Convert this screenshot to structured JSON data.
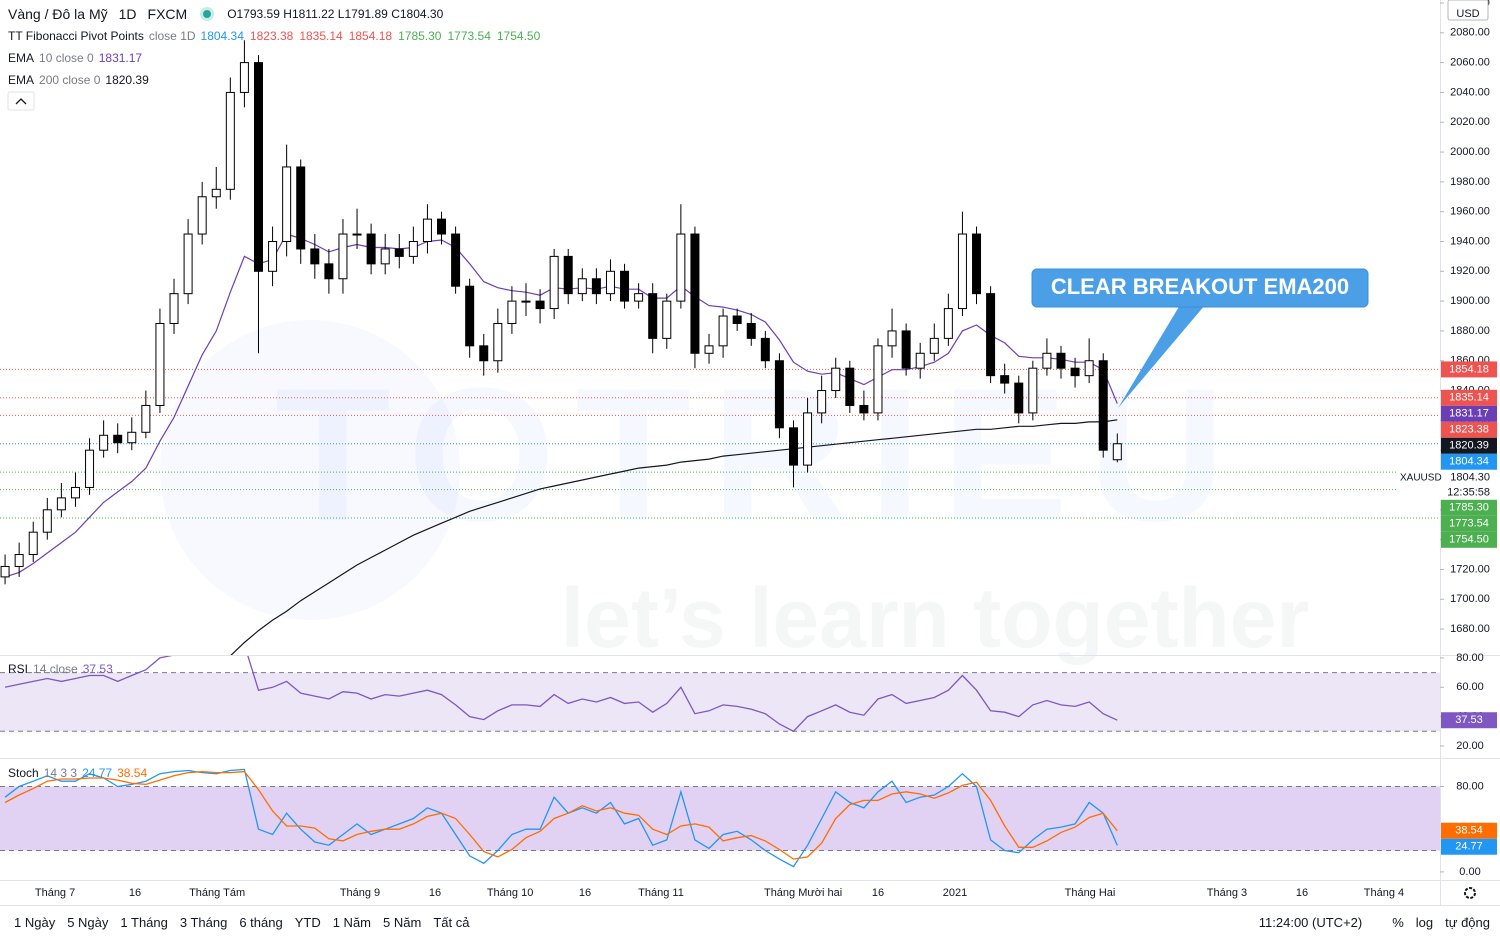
{
  "header": {
    "symbol": "Vàng / Đô la Mỹ",
    "interval": "1D",
    "exchange": "FXCM",
    "ohlc_keys": [
      "O",
      "H",
      "L",
      "C"
    ]
  },
  "toolbar": {
    "ranges": [
      "1 Ngày",
      "5 Ngày",
      "1 Tháng",
      "3 Tháng",
      "6 tháng",
      "YTD",
      "1 Năm",
      "5 Năm",
      "Tất cả"
    ],
    "time": "11:24:00 (UTC+2)",
    "options": [
      "%",
      "log",
      "tự động"
    ]
  },
  "chart_data": [
    {
      "type": "candlestick",
      "currency": "USD",
      "symbol_code": "XAUUSD",
      "countdown": "12:35:58",
      "last_label": "1804.30",
      "up_color": "#ffffff",
      "down_color": "#000000",
      "open": [
        1715,
        1722,
        1730,
        1745,
        1760,
        1768,
        1775,
        1800,
        1810,
        1805,
        1812,
        1830,
        1885,
        1905,
        1945,
        1970,
        1975,
        2040,
        2060,
        1920,
        1940,
        1990,
        1935,
        1925,
        1915,
        1945,
        1945,
        1925,
        1935,
        1930,
        1940,
        1955,
        1945,
        1910,
        1870,
        1860,
        1885,
        1900,
        1900,
        1895,
        1930,
        1905,
        1915,
        1905,
        1920,
        1900,
        1905,
        1875,
        1900,
        1945,
        1865,
        1870,
        1890,
        1885,
        1875,
        1860,
        1815,
        1790,
        1825,
        1840,
        1855,
        1830,
        1825,
        1870,
        1880,
        1855,
        1865,
        1875,
        1895,
        1945,
        1905,
        1850,
        1845,
        1825,
        1855,
        1865,
        1855,
        1850,
        1860,
        1793.59
      ],
      "high": [
        1730,
        1738,
        1752,
        1768,
        1778,
        1785,
        1808,
        1820,
        1818,
        1822,
        1840,
        1895,
        1915,
        1955,
        1980,
        1990,
        2050,
        2075,
        2065,
        1950,
        2005,
        1995,
        1945,
        1935,
        1955,
        1962,
        1952,
        1945,
        1945,
        1950,
        1965,
        1960,
        1950,
        1915,
        1878,
        1895,
        1910,
        1912,
        1908,
        1935,
        1935,
        1922,
        1922,
        1928,
        1925,
        1912,
        1912,
        1905,
        1965,
        1950,
        1878,
        1895,
        1895,
        1892,
        1880,
        1865,
        1820,
        1835,
        1850,
        1862,
        1860,
        1840,
        1875,
        1895,
        1885,
        1872,
        1885,
        1905,
        1960,
        1950,
        1910,
        1858,
        1850,
        1860,
        1875,
        1870,
        1862,
        1875,
        1865,
        1811.22
      ],
      "low": [
        1710,
        1715,
        1725,
        1740,
        1755,
        1762,
        1770,
        1795,
        1798,
        1800,
        1808,
        1825,
        1878,
        1898,
        1938,
        1962,
        1968,
        2030,
        1865,
        1910,
        1930,
        1925,
        1915,
        1905,
        1905,
        1935,
        1918,
        1918,
        1922,
        1925,
        1932,
        1938,
        1905,
        1862,
        1850,
        1852,
        1878,
        1890,
        1885,
        1888,
        1898,
        1900,
        1898,
        1900,
        1895,
        1895,
        1865,
        1868,
        1895,
        1855,
        1858,
        1862,
        1880,
        1870,
        1855,
        1808,
        1775,
        1785,
        1818,
        1835,
        1825,
        1820,
        1820,
        1862,
        1850,
        1848,
        1860,
        1870,
        1890,
        1898,
        1845,
        1838,
        1818,
        1820,
        1850,
        1848,
        1842,
        1845,
        1795,
        1791.89
      ],
      "close": [
        1722,
        1730,
        1745,
        1760,
        1768,
        1775,
        1800,
        1810,
        1805,
        1812,
        1830,
        1885,
        1905,
        1945,
        1970,
        1975,
        2040,
        2060,
        1920,
        1940,
        1990,
        1935,
        1925,
        1915,
        1945,
        1945,
        1925,
        1935,
        1930,
        1940,
        1955,
        1945,
        1910,
        1870,
        1860,
        1885,
        1900,
        1900,
        1895,
        1930,
        1905,
        1915,
        1905,
        1920,
        1900,
        1905,
        1875,
        1900,
        1945,
        1865,
        1870,
        1890,
        1885,
        1875,
        1860,
        1815,
        1790,
        1825,
        1840,
        1855,
        1830,
        1825,
        1870,
        1880,
        1855,
        1865,
        1875,
        1895,
        1945,
        1905,
        1850,
        1845,
        1825,
        1855,
        1865,
        1855,
        1850,
        1860,
        1800,
        1804.3
      ],
      "series": [
        {
          "name": "EMA",
          "params": "10 close 0",
          "color": "#6a3fb5",
          "values": [
            1715,
            1718,
            1724,
            1731,
            1738,
            1745,
            1755,
            1765,
            1772,
            1779,
            1788,
            1806,
            1822,
            1843,
            1864,
            1880,
            1906,
            1930,
            1925,
            1928,
            1945,
            1942,
            1938,
            1933,
            1936,
            1938,
            1936,
            1936,
            1935,
            1936,
            1940,
            1941,
            1936,
            1925,
            1913,
            1909,
            1907,
            1906,
            1904,
            1909,
            1908,
            1909,
            1908,
            1910,
            1908,
            1908,
            1902,
            1902,
            1910,
            1903,
            1897,
            1896,
            1894,
            1891,
            1886,
            1874,
            1859,
            1853,
            1851,
            1852,
            1848,
            1844,
            1849,
            1854,
            1854,
            1856,
            1859,
            1865,
            1880,
            1884,
            1877,
            1872,
            1863,
            1862,
            1862,
            1861,
            1859,
            1859,
            1854,
            1831.17
          ]
        },
        {
          "name": "EMA",
          "params": "200 close 0",
          "color": "#131722",
          "values": [
            null,
            null,
            null,
            null,
            null,
            null,
            null,
            null,
            null,
            null,
            null,
            null,
            null,
            null,
            null,
            null,
            1662,
            1671,
            1679,
            1686,
            1692,
            1699,
            1705,
            1711,
            1717,
            1723,
            1728,
            1733,
            1738,
            1743,
            1747,
            1751,
            1755,
            1759,
            1762,
            1765,
            1768,
            1771,
            1774,
            1776,
            1778,
            1780,
            1782,
            1784,
            1786,
            1788,
            1789,
            1790,
            1792,
            1793,
            1794,
            1796,
            1797,
            1798,
            1799,
            1800,
            1801,
            1802,
            1803,
            1804,
            1805,
            1806,
            1807,
            1808,
            1809,
            1810,
            1811,
            1812,
            1813,
            1814,
            1814,
            1815,
            1816,
            1816,
            1817,
            1818,
            1818,
            1819,
            1819,
            1820.39
          ]
        }
      ],
      "pivots": {
        "name": "TT Fibonacci Pivot Points",
        "params": "close 1D",
        "levels": [
          {
            "value": 1804.34,
            "label": "1804.34",
            "color": "#2196f3"
          },
          {
            "value": 1823.38,
            "label": "1823.38",
            "color": "#ef5350"
          },
          {
            "value": 1835.14,
            "label": "1835.14",
            "color": "#ef5350"
          },
          {
            "value": 1854.18,
            "label": "1854.18",
            "color": "#ef5350"
          },
          {
            "value": 1785.3,
            "label": "1785.30",
            "color": "#4caf50"
          },
          {
            "value": 1773.54,
            "label": "1773.54",
            "color": "#4caf50"
          },
          {
            "value": 1754.5,
            "label": "1754.50",
            "color": "#4caf50"
          }
        ]
      },
      "annotation": "CLEAR BREAKOUT EMA200",
      "watermark": {
        "brand": "TOTRIEU",
        "slogan": "let’s learn together"
      },
      "xlim": [
        -0.36,
        101.92
      ],
      "xticks": [
        {
          "value": 3.55,
          "label": "Tháng 7"
        },
        {
          "value": 9.23,
          "label": "16"
        },
        {
          "value": 15.06,
          "label": "Tháng Tám"
        },
        {
          "value": 25.21,
          "label": "Tháng 9"
        },
        {
          "value": 30.54,
          "label": "16"
        },
        {
          "value": 35.87,
          "label": "Tháng 10"
        },
        {
          "value": 41.19,
          "label": "16"
        },
        {
          "value": 46.59,
          "label": "Tháng 11"
        },
        {
          "value": 56.68,
          "label": "Tháng Mười hai"
        },
        {
          "value": 62.0,
          "label": "16"
        },
        {
          "value": 67.47,
          "label": "2021"
        },
        {
          "value": 77.06,
          "label": "Tháng Hai"
        },
        {
          "value": 86.79,
          "label": "Tháng 3"
        },
        {
          "value": 92.12,
          "label": "16"
        },
        {
          "value": 97.94,
          "label": "Tháng 4"
        }
      ],
      "ylim": [
        1662.6,
        2102
      ],
      "yticks": [
        {
          "value": 1680,
          "label": "1680.00"
        },
        {
          "value": 1700,
          "label": "1700.00"
        },
        {
          "value": 1720,
          "label": "1720.00"
        },
        {
          "value": 1740,
          "label": "1740.00"
        },
        {
          "value": 1760,
          "label": "1760.00"
        },
        {
          "value": 1780,
          "label": "1780.00"
        },
        {
          "value": 1800,
          "label": "1800.00"
        },
        {
          "value": 1820,
          "label": "1820.00"
        },
        {
          "value": 1840,
          "label": "1840.00"
        },
        {
          "value": 1860,
          "label": "1860.00"
        },
        {
          "value": 1880,
          "label": "1880.00"
        },
        {
          "value": 1900,
          "label": "1900.00"
        },
        {
          "value": 1920,
          "label": "1920.00"
        },
        {
          "value": 1940,
          "label": "1940.00"
        },
        {
          "value": 1960,
          "label": "1960.00"
        },
        {
          "value": 1980,
          "label": "1980.00"
        },
        {
          "value": 2000,
          "label": "2000.00"
        },
        {
          "value": 2020,
          "label": "2020.00"
        },
        {
          "value": 2040,
          "label": "2040.00"
        },
        {
          "value": 2060,
          "label": "2060.00"
        },
        {
          "value": 2080,
          "label": "2080.00"
        },
        {
          "value": 2100,
          "label": "2100.00"
        }
      ]
    },
    {
      "type": "line",
      "title": "RSI",
      "params": "14 close",
      "band": [
        30,
        70
      ],
      "band_color": "#7e57c2",
      "series": [
        {
          "name": "RSI",
          "color": "#7e57c2",
          "values": [
            60,
            62,
            64,
            66,
            64,
            66,
            68,
            68,
            64,
            68,
            72,
            80,
            82,
            84,
            85,
            84,
            88,
            89,
            58,
            60,
            64,
            56,
            54,
            52,
            57,
            56,
            52,
            55,
            54,
            56,
            58,
            55,
            48,
            40,
            38,
            44,
            48,
            48,
            47,
            55,
            49,
            52,
            50,
            53,
            49,
            50,
            43,
            49,
            60,
            42,
            44,
            48,
            47,
            45,
            42,
            35,
            30,
            40,
            44,
            48,
            43,
            41,
            52,
            55,
            49,
            51,
            53,
            58,
            68,
            58,
            44,
            43,
            40,
            48,
            51,
            48,
            47,
            50,
            42,
            37.53
          ]
        }
      ],
      "ylim": [
        11.8,
        82
      ],
      "yticks": [
        {
          "value": 20,
          "label": "20.00"
        },
        {
          "value": 40,
          "label": "40.00"
        },
        {
          "value": 60,
          "label": "60.00"
        },
        {
          "value": 80,
          "label": "80.00"
        }
      ]
    },
    {
      "type": "line",
      "title": "Stoch",
      "params": "14 3 3",
      "band": [
        20,
        80
      ],
      "band_color": "#9c6ad8",
      "series": [
        {
          "name": "K",
          "color": "#2196f3",
          "values": [
            70,
            80,
            85,
            90,
            85,
            85,
            92,
            88,
            80,
            82,
            85,
            92,
            94,
            95,
            93,
            92,
            95,
            96,
            40,
            35,
            55,
            40,
            28,
            25,
            35,
            45,
            35,
            40,
            45,
            50,
            60,
            55,
            35,
            15,
            8,
            20,
            35,
            40,
            40,
            70,
            55,
            60,
            55,
            65,
            45,
            50,
            25,
            30,
            75,
            30,
            22,
            35,
            38,
            30,
            20,
            12,
            5,
            25,
            50,
            75,
            65,
            60,
            75,
            85,
            65,
            70,
            72,
            80,
            92,
            80,
            30,
            20,
            18,
            30,
            40,
            42,
            45,
            65,
            55,
            24.77
          ]
        },
        {
          "name": "D",
          "color": "#ff6d00",
          "values": [
            65,
            72,
            78,
            85,
            87,
            87,
            88,
            88,
            86,
            83,
            82,
            86,
            90,
            93,
            94,
            93,
            93,
            94,
            77,
            57,
            43,
            43,
            41,
            31,
            29,
            35,
            38,
            40,
            40,
            45,
            52,
            55,
            50,
            35,
            19,
            14,
            21,
            32,
            38,
            50,
            55,
            62,
            57,
            60,
            55,
            53,
            40,
            35,
            43,
            45,
            42,
            29,
            32,
            34,
            29,
            21,
            12,
            14,
            27,
            50,
            63,
            67,
            67,
            73,
            75,
            73,
            69,
            74,
            81,
            84,
            67,
            43,
            23,
            23,
            29,
            37,
            42,
            51,
            55,
            38.54
          ]
        }
      ],
      "ylim": [
        -7.6,
        106.7
      ],
      "yticks": [
        {
          "value": 0,
          "label": "0.00"
        },
        {
          "value": 80,
          "label": "80.00"
        }
      ]
    }
  ]
}
